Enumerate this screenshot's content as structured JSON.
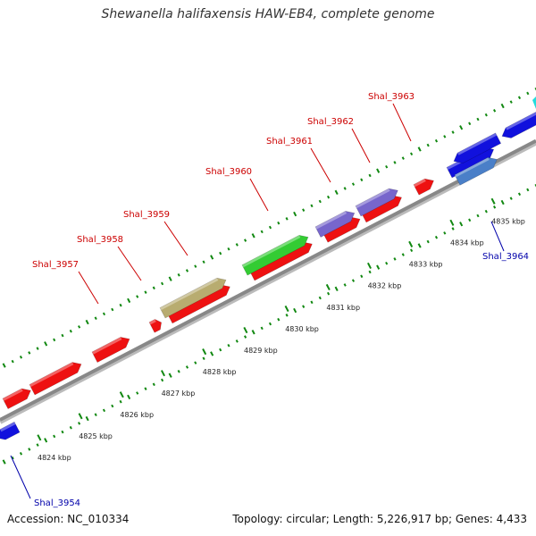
{
  "title": "Shewanella halifaxensis HAW-EB4, complete genome",
  "footer": {
    "accession": "Accession: NC_010334",
    "stats": "Topology: circular; Length: 5,226,917 bp; Genes: 4,433"
  },
  "colors": {
    "forward_gene": "#ee1111",
    "reverse_gene": "#1111dd",
    "reverse_gene_alt": "#4a7fc8",
    "olive": "#b8ac70",
    "green": "#33cc33",
    "purple": "#7766cc",
    "ticks": "#118811",
    "backbone": "#888888",
    "label_red": "#cc0000",
    "label_blue": "#0000aa"
  },
  "tick_labels": [
    "4824 kbp",
    "4825 kbp",
    "4826 kbp",
    "4827 kbp",
    "4828 kbp",
    "4829 kbp",
    "4830 kbp",
    "4831 kbp",
    "4832 kbp",
    "4833 kbp",
    "4834 kbp",
    "4835 kbp"
  ],
  "gene_labels": [
    {
      "id": "Shal_3957",
      "color": "label_red"
    },
    {
      "id": "Shal_3958",
      "color": "label_red"
    },
    {
      "id": "Shal_3959",
      "color": "label_red"
    },
    {
      "id": "Shal_3960",
      "color": "label_red"
    },
    {
      "id": "Shal_3961",
      "color": "label_red"
    },
    {
      "id": "Shal_3962",
      "color": "label_red"
    },
    {
      "id": "Shal_3963",
      "color": "label_red"
    },
    {
      "id": "Shal_3964",
      "color": "label_blue"
    },
    {
      "id": "Shal_3954",
      "color": "label_blue"
    }
  ]
}
